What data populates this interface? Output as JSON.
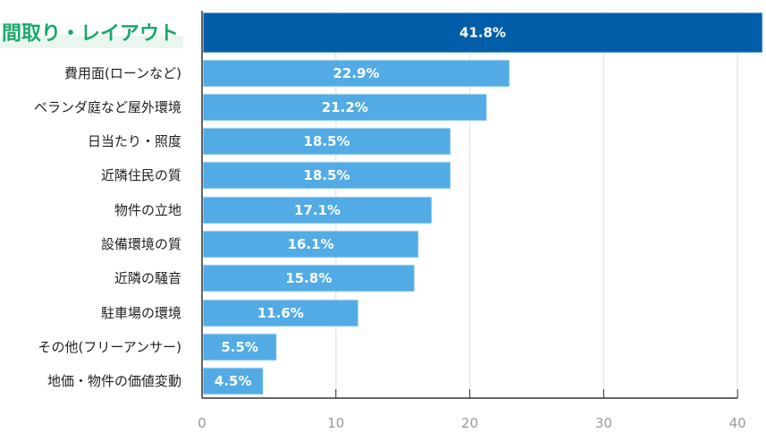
{
  "chart_data": {
    "type": "bar",
    "orientation": "horizontal",
    "title": "",
    "xlabel": "",
    "ylabel": "",
    "xlim": [
      0,
      40
    ],
    "xticks": [
      0,
      10,
      20,
      30,
      40
    ],
    "grid": true,
    "categories": [
      "間取り・レイアウト",
      "費用面(ローンなど)",
      "ベランダ庭など屋外環境",
      "日当たり・照度",
      "近隣住民の質",
      "物件の立地",
      "設備環境の質",
      "近隣の騒音",
      "駐車場の環境",
      "その他(フリーアンサー)",
      "地価・物件の価値変動"
    ],
    "values": [
      41.8,
      22.9,
      21.2,
      18.5,
      18.5,
      17.1,
      16.1,
      15.8,
      11.6,
      5.5,
      4.5
    ],
    "data_labels": [
      "41.8%",
      "22.9%",
      "21.2%",
      "18.5%",
      "18.5%",
      "17.1%",
      "16.1%",
      "15.8%",
      "11.6%",
      "5.5%",
      "4.5%"
    ],
    "highlight_index": 0,
    "colors": {
      "highlight_bar": "#035ea9",
      "bar": "#52abe5",
      "highlight_label": "#1aa86a",
      "highlight_label_bg": "#eaf6f0",
      "axis": "#333333",
      "grid": "#e8e8e8",
      "tick_label": "#999999"
    }
  }
}
